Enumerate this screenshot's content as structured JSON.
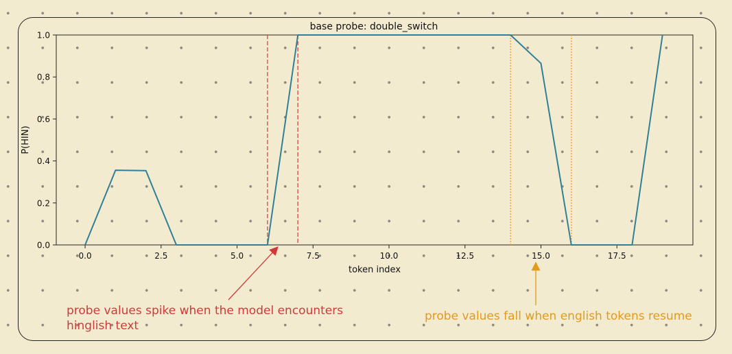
{
  "chart_data": {
    "type": "line",
    "title": "base probe: double_switch",
    "xlabel": "token index",
    "ylabel": "P(HIN)",
    "xlim": [
      -0.95,
      20.0
    ],
    "ylim": [
      0,
      1
    ],
    "xticks": [
      0.0,
      2.5,
      5.0,
      7.5,
      10.0,
      12.5,
      15.0,
      17.5
    ],
    "xtick_labels": [
      "0.0",
      "2.5",
      "5.0",
      "7.5",
      "10.0",
      "12.5",
      "15.0",
      "17.5"
    ],
    "yticks": [
      0.0,
      0.2,
      0.4,
      0.6,
      0.8,
      1.0
    ],
    "ytick_labels": [
      "0.0",
      "0.2",
      "0.4",
      "0.6",
      "0.8",
      "1.0"
    ],
    "grid": false,
    "series": [
      {
        "color": "#2f7f96",
        "x": [
          0,
          1,
          2,
          3,
          4,
          5,
          6,
          7,
          8,
          9,
          10,
          11,
          12,
          13,
          14,
          15,
          16,
          17,
          18,
          19
        ],
        "y": [
          0.0,
          0.356,
          0.354,
          0.0,
          0.0,
          0.0,
          0.0,
          1.0,
          1.0,
          1.0,
          1.0,
          1.0,
          1.0,
          1.0,
          1.0,
          0.865,
          0.0,
          0.0,
          0.0,
          1.0
        ]
      }
    ],
    "vlines": [
      {
        "x": 6,
        "style": "dashed",
        "color": "#d9534f"
      },
      {
        "x": 7,
        "style": "dashed",
        "color": "#d9534f"
      },
      {
        "x": 14,
        "style": "dotted",
        "color": "#e8a33a"
      },
      {
        "x": 16,
        "style": "dotted",
        "color": "#e8a33a"
      }
    ],
    "annotations": [
      {
        "text": "probe values spike when the model encounters\nhinglish text",
        "color": "#d0393a",
        "arrow_target_x": 6.3,
        "arrow_target_y": 0.0
      },
      {
        "text": "probe values fall when english tokens resume",
        "color": "#e19a1e",
        "arrow_target_x": 14.9,
        "arrow_target_y": 0.0
      }
    ]
  },
  "notes": {
    "red_line1": "probe values spike when the model encounters",
    "red_line2": "hinglish text",
    "orange": "probe values fall when english tokens resume"
  }
}
